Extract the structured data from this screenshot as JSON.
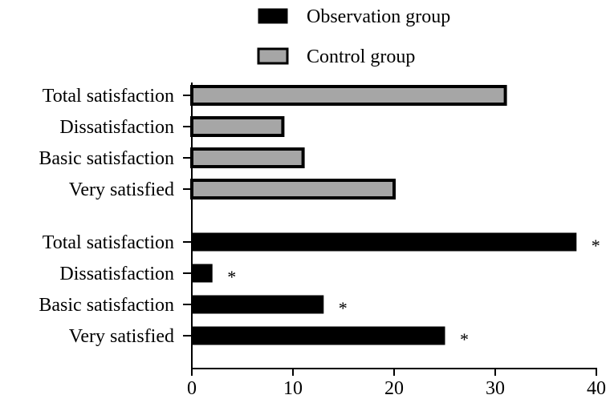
{
  "chart_data": {
    "type": "bar",
    "orientation": "horizontal",
    "xlim": [
      0,
      40
    ],
    "xticks": [
      "0",
      "10",
      "20",
      "30",
      "40"
    ],
    "grid": false,
    "legend_position": "top",
    "categories": [
      "Total satisfaction",
      "Dissatisfaction",
      "Basic satisfaction",
      "Very satisfied"
    ],
    "series": [
      {
        "name": "Control group",
        "color": "#a6a6a6",
        "values": [
          31,
          9,
          11,
          20
        ],
        "markers": [
          "",
          "",
          "",
          ""
        ]
      },
      {
        "name": "Observation group",
        "color": "#000000",
        "values": [
          38,
          2,
          13,
          25
        ],
        "markers": [
          "*",
          "*",
          "*",
          "*"
        ]
      }
    ],
    "legend_order": [
      1,
      0
    ]
  }
}
